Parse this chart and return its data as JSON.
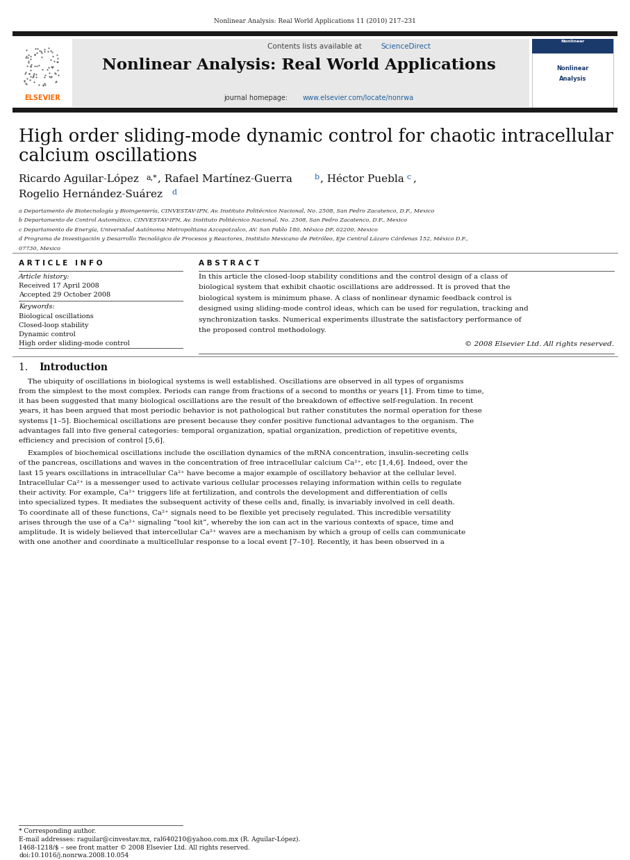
{
  "page_width": 9.07,
  "page_height": 12.38,
  "bg_color": "#ffffff",
  "journal_header_text": "Nonlinear Analysis: Real World Applications 11 (2010) 217–231",
  "journal_name": "Nonlinear Analysis: Real World Applications",
  "contents_text": "Contents lists available at ",
  "sciencedirect_text": "ScienceDirect",
  "sciencedirect_color": "#2060a0",
  "homepage_url_color": "#2060a0",
  "paper_title_line1": "High order sliding-mode dynamic control for chaotic intracellular",
  "paper_title_line2": "calcium oscillations",
  "affil_a": "a Departamento de Biotecnología y Bioingeniería, CINVESTAV-IPN, Av. Instituto Politécnico Nacional, No. 2508, San Pedro Zacatenco, D.F., Mexico",
  "affil_b": "b Departamento de Control Automático, CINVESTAV-IPN, Av. Instituto Politécnico Nacional, No. 2508, San Pedro Zacatenco, D.F., Mexico",
  "affil_c": "c Departamento de Energía, Universidad Autónoma Metropolitana Azcapotzalco, AV. San Pablo 180, México DF, 02200, Mexico",
  "affil_d1": "d Programa de Investigación y Desarrollo Tecnológico de Procesos y Reactores, Instituto Mexicano de Petróleo, Eje Central Lázaro Cárdenas 152, México D.F.,",
  "affil_d2": "07730, Mexico",
  "article_info_title": "A R T I C L E   I N F O",
  "article_history_label": "Article history:",
  "received_text": "Received 17 April 2008",
  "accepted_text": "Accepted 29 October 2008",
  "keywords_label": "Keywords:",
  "kw1": "Biological oscillations",
  "kw2": "Closed-loop stability",
  "kw3": "Dynamic control",
  "kw4": "High order sliding-mode control",
  "abstract_title": "A B S T R A C T",
  "abstract_lines": [
    "In this article the closed-loop stability conditions and the control design of a class of",
    "biological system that exhibit chaotic oscillations are addressed. It is proved that the",
    "biological system is minimum phase. A class of nonlinear dynamic feedback control is",
    "designed using sliding-mode control ideas, which can be used for regulation, tracking and",
    "synchronization tasks. Numerical experiments illustrate the satisfactory performance of",
    "the proposed control methodology."
  ],
  "copyright_text": "© 2008 Elsevier Ltd. All rights reserved.",
  "section1_title": "1.  Introduction",
  "intro1_lines": [
    "    The ubiquity of oscillations in biological systems is well established. Oscillations are observed in all types of organisms",
    "from the simplest to the most complex. Periods can range from fractions of a second to months or years [1]. From time to time,",
    "it has been suggested that many biological oscillations are the result of the breakdown of effective self-regulation. In recent",
    "years, it has been argued that most periodic behavior is not pathological but rather constitutes the normal operation for these",
    "systems [1–5]. Biochemical oscillations are present because they confer positive functional advantages to the organism. The",
    "advantages fall into five general categories: temporal organization, spatial organization, prediction of repetitive events,",
    "efficiency and precision of control [5,6]."
  ],
  "intro2_lines": [
    "    Examples of biochemical oscillations include the oscillation dynamics of the mRNA concentration, insulin-secreting cells",
    "of the pancreas, oscillations and waves in the concentration of free intracellular calcium Ca²⁺, etc [1,4,6]. Indeed, over the",
    "last 15 years oscillations in intracellular Ca²⁺ have become a major example of oscillatory behavior at the cellular level.",
    "Intracellular Ca²⁺ is a messenger used to activate various cellular processes relaying information within cells to regulate",
    "their activity. For example, Ca²⁺ triggers life at fertilization, and controls the development and differentiation of cells",
    "into specialized types. It mediates the subsequent activity of these cells and, finally, is invariably involved in cell death.",
    "To coordinate all of these functions, Ca²⁺ signals need to be flexible yet precisely regulated. This incredible versatility",
    "arises through the use of a Ca²⁺ signaling “tool kit”, whereby the ion can act in the various contexts of space, time and",
    "amplitude. It is widely believed that intercellular Ca²⁺ waves are a mechanism by which a group of cells can communicate",
    "with one another and coordinate a multicellular response to a local event [7–10]. Recently, it has been observed in a"
  ],
  "footer_note": "* Corresponding author.",
  "footer_email": "E-mail addresses: raguilar@cinvestav.mx, ral640210@yahoo.com.mx (R. Aguilar-López).",
  "footer_issn": "1468-1218/$ – see front matter © 2008 Elsevier Ltd. All rights reserved.",
  "footer_doi": "doi:10.1016/j.nonrwa.2008.10.054",
  "header_bg": "#e8e8e8",
  "thick_bar_color": "#1a1a1a",
  "elsevier_color": "#ff6600",
  "link_color": "#2060a0"
}
